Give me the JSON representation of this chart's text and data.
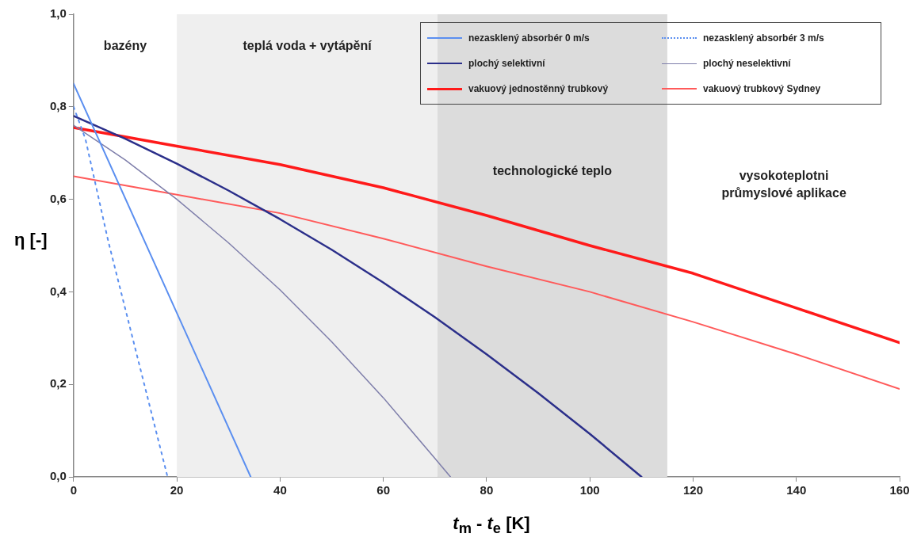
{
  "chart_data": {
    "type": "line",
    "xlabel": "t$_{m}$ - t$_{e}$ [K]",
    "ylabel": "η [-]",
    "xlim": [
      0,
      160
    ],
    "xticks": [
      0,
      20,
      40,
      60,
      80,
      100,
      120,
      140,
      160
    ],
    "ylim": [
      0,
      1
    ],
    "yticks": [
      {
        "value": 0,
        "label": "0,0"
      },
      {
        "value": 0.2,
        "label": "0,2"
      },
      {
        "value": 0.4,
        "label": "0,4"
      },
      {
        "value": 0.6,
        "label": "0,6"
      },
      {
        "value": 0.8,
        "label": "0,8"
      },
      {
        "value": 1,
        "label": "1,0"
      }
    ],
    "grid": false,
    "legend": "top right",
    "marker": "none",
    "line_style": "solid",
    "bands": [
      {
        "axis": "x",
        "from": 20,
        "to": 70.5,
        "color": "#efefef",
        "label": "teplá voda + vytápění"
      },
      {
        "axis": "x",
        "from": 70.5,
        "to": 115,
        "color": "#dcdcdc",
        "label": "technologické teplo"
      }
    ],
    "annotations": [
      "bazény",
      "vysokoteplotni\nprůmyslové aplikace"
    ],
    "series": [
      {
        "name": "nezasklený absorbér 0 m/s",
        "color": "#5b8ff0",
        "x": [
          0,
          34.3
        ],
        "values": [
          0.85,
          0
        ]
      },
      {
        "name": "nezasklený absorbér 3 m/s",
        "color": "#5b8ff0",
        "line_style": "dotted",
        "x": [
          0,
          2.3,
          6.7,
          18.2
        ],
        "values": [
          0.8,
          0.73,
          0.51,
          0
        ]
      },
      {
        "name": "plochý selektivní",
        "color": "#2b2f8a",
        "x": [
          0,
          10,
          20,
          30,
          40,
          50,
          60,
          70,
          80,
          90,
          100,
          110
        ],
        "values": [
          0.78,
          0.731,
          0.677,
          0.619,
          0.557,
          0.491,
          0.42,
          0.345,
          0.265,
          0.181,
          0.093,
          0
        ]
      },
      {
        "name": "plochý neselektivní",
        "color": "#7e7eaa",
        "x": [
          0,
          10,
          20,
          30,
          40,
          50,
          60,
          70,
          73
        ],
        "values": [
          0.76,
          0.685,
          0.6,
          0.506,
          0.404,
          0.292,
          0.171,
          0.04,
          0
        ]
      },
      {
        "name": "vakuový jednostěnný trubkový",
        "color": "#ff1a1a",
        "x": [
          0,
          20,
          40,
          60,
          80,
          100,
          120,
          140,
          160
        ],
        "values": [
          0.755,
          0.715,
          0.675,
          0.625,
          0.565,
          0.5,
          0.44,
          0.365,
          0.29
        ]
      },
      {
        "name": "vakuový trubkový Sydney",
        "color": "#ff5a5a",
        "x": [
          0,
          20,
          40,
          60,
          80,
          100,
          120,
          140,
          160
        ],
        "values": [
          0.65,
          0.61,
          0.57,
          0.515,
          0.455,
          0.4,
          0.335,
          0.265,
          0.19
        ]
      }
    ]
  }
}
